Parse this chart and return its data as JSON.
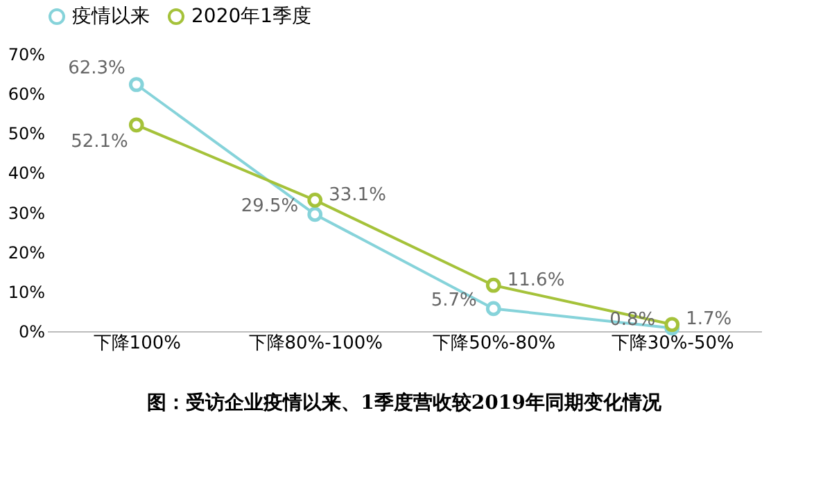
{
  "chart_data": {
    "type": "line",
    "title": "图：受访企业疫情以来、1季度营收较2019年同期变化情况",
    "categories": [
      "下降100%",
      "下降80%-100%",
      "下降50%-80%",
      "下降30%-50%"
    ],
    "series": [
      {
        "name": "疫情以来",
        "color": "#86d3da",
        "values": [
          62.3,
          29.5,
          5.7,
          0.8
        ],
        "value_labels": [
          "62.3%",
          "29.5%",
          "5.7%",
          "0.8%"
        ]
      },
      {
        "name": "2020年1季度",
        "color": "#a5c23a",
        "values": [
          52.1,
          33.1,
          11.6,
          1.7
        ],
        "value_labels": [
          "52.1%",
          "33.1%",
          "11.6%",
          "1.7%"
        ]
      }
    ],
    "ylim": [
      0,
      70
    ],
    "yticks": [
      {
        "value": 0,
        "label": "0%"
      },
      {
        "value": 10,
        "label": "10%"
      },
      {
        "value": 20,
        "label": "20%"
      },
      {
        "value": 30,
        "label": "30%"
      },
      {
        "value": 40,
        "label": "40%"
      },
      {
        "value": 50,
        "label": "50%"
      },
      {
        "value": 60,
        "label": "60%"
      },
      {
        "value": 70,
        "label": "70%"
      }
    ],
    "grid": false,
    "legend": "top",
    "marker": "circle",
    "line_style": "solid"
  }
}
